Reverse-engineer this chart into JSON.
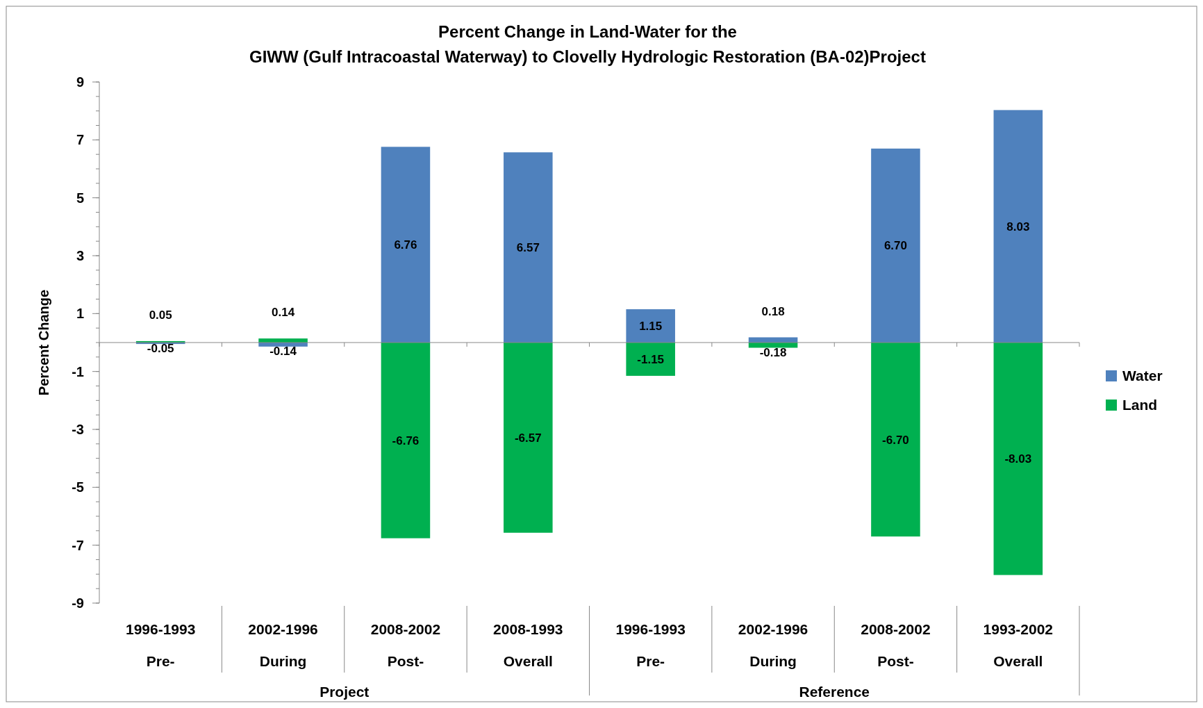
{
  "chart_data": {
    "type": "bar",
    "title": "Percent Change in Land-Water for the\nGIWW (Gulf Intracoastal  Waterway) to Clovelly Hydrologic Restoration (BA-02)Project",
    "ylabel": "Percent Change",
    "categories": [
      "1996-1993\nPre-",
      "2002-1996\nDuring",
      "2008-2002\nPost-",
      "2008-1993\nOverall",
      "1996-1993\nPre-",
      "2002-1996\nDuring",
      "2008-2002\nPost-",
      "1993-2002\nOverall"
    ],
    "series": [
      {
        "name": "Water",
        "color": "#4f81bd",
        "values": [
          -0.05,
          -0.14,
          6.76,
          6.57,
          1.15,
          0.18,
          6.7,
          8.03
        ],
        "value_labels": [
          "-0.05",
          "-0.14",
          "6.76",
          "6.57",
          "1.15",
          "0.18",
          "6.70",
          "8.03"
        ]
      },
      {
        "name": "Land",
        "color": "#00b050",
        "values": [
          0.05,
          0.14,
          -6.76,
          -6.57,
          -1.15,
          -0.18,
          -6.7,
          -8.03
        ],
        "value_labels": [
          "0.05",
          "0.14",
          "-6.76",
          "-6.57",
          "-1.15",
          "-0.18",
          "-6.70",
          "-8.03"
        ]
      }
    ],
    "stacked": true,
    "ylim": [
      -9,
      9
    ],
    "yticks": [
      -9,
      -7,
      -5,
      -3,
      -1,
      1,
      3,
      5,
      7,
      9
    ],
    "grid": false,
    "legend": "right",
    "annotations": [
      "Project",
      "Reference"
    ]
  }
}
